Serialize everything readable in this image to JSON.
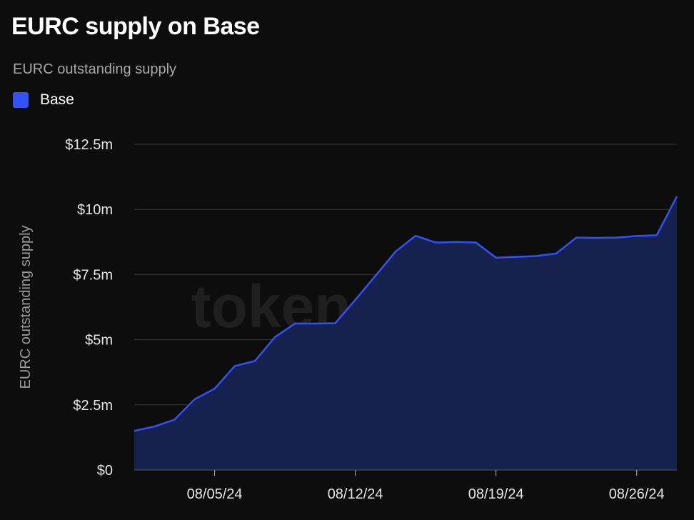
{
  "header": {
    "title": "EURC supply on Base",
    "subtitle": "EURC outstanding supply"
  },
  "legend": {
    "items": [
      {
        "label": "Base",
        "color": "#3352f2"
      }
    ]
  },
  "watermark": "token terminal_",
  "colors": {
    "background": "#0d0d0d",
    "line": "#3352f2",
    "fill": "#16214f",
    "grid": "#3a3a3a"
  },
  "chart_data": {
    "type": "area",
    "title": "EURC supply on Base",
    "subtitle": "EURC outstanding supply",
    "ylabel": "EURC outstanding supply",
    "xlabel": "",
    "ylim": [
      0,
      12.5
    ],
    "y_unit": "millions USD",
    "y_ticks": [
      0,
      2.5,
      5,
      7.5,
      10,
      12.5
    ],
    "y_tick_labels": [
      "$0",
      "$2.5m",
      "$5m",
      "$7.5m",
      "$10m",
      "$12.5m"
    ],
    "x_range": [
      "2024-08-01",
      "2024-08-28"
    ],
    "x_ticks": [
      "2024-08-05",
      "2024-08-12",
      "2024-08-19",
      "2024-08-26"
    ],
    "x_tick_labels": [
      "08/05/24",
      "08/12/24",
      "08/19/24",
      "08/26/24"
    ],
    "grid": true,
    "legend_position": "top-left",
    "series": [
      {
        "name": "Base",
        "x": [
          "2024-08-01",
          "2024-08-02",
          "2024-08-03",
          "2024-08-04",
          "2024-08-05",
          "2024-08-06",
          "2024-08-07",
          "2024-08-08",
          "2024-08-09",
          "2024-08-10",
          "2024-08-11",
          "2024-08-12",
          "2024-08-13",
          "2024-08-14",
          "2024-08-15",
          "2024-08-16",
          "2024-08-17",
          "2024-08-18",
          "2024-08-19",
          "2024-08-20",
          "2024-08-21",
          "2024-08-22",
          "2024-08-23",
          "2024-08-24",
          "2024-08-25",
          "2024-08-26",
          "2024-08-27",
          "2024-08-28"
        ],
        "values": [
          1.5,
          1.67,
          1.93,
          2.71,
          3.12,
          3.99,
          4.18,
          5.1,
          5.62,
          5.62,
          5.63,
          6.53,
          7.45,
          8.38,
          8.99,
          8.73,
          8.75,
          8.73,
          8.15,
          8.18,
          8.21,
          8.31,
          8.92,
          8.91,
          8.92,
          8.98,
          9.01,
          10.5
        ]
      }
    ]
  }
}
